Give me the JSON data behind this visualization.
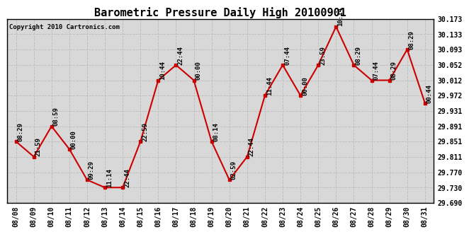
{
  "title": "Barometric Pressure Daily High 20100901",
  "copyright": "Copyright 2010 Cartronics.com",
  "dates": [
    "08/08",
    "08/09",
    "08/10",
    "08/11",
    "08/12",
    "08/13",
    "08/14",
    "08/15",
    "08/16",
    "08/17",
    "08/18",
    "08/19",
    "08/20",
    "08/21",
    "08/22",
    "08/23",
    "08/24",
    "08/25",
    "08/26",
    "08/27",
    "08/28",
    "08/29",
    "08/30",
    "08/31"
  ],
  "values": [
    29.851,
    29.811,
    29.891,
    29.831,
    29.75,
    29.73,
    29.73,
    29.851,
    30.012,
    30.052,
    30.012,
    29.851,
    29.75,
    29.811,
    29.972,
    30.052,
    29.972,
    30.052,
    30.153,
    30.052,
    30.012,
    30.012,
    30.093,
    29.952
  ],
  "labels": [
    "08:29",
    "21:59",
    "08:59",
    "00:00",
    "09:29",
    "11:14",
    "22:44",
    "22:59",
    "10:44",
    "22:44",
    "00:00",
    "08:14",
    "02:59",
    "22:44",
    "11:44",
    "07:44",
    "00:00",
    "23:59",
    "10:14",
    "08:29",
    "07:44",
    "08:29",
    "08:29",
    "00:44"
  ],
  "ylim": [
    29.69,
    30.173
  ],
  "yticks": [
    29.69,
    29.73,
    29.77,
    29.811,
    29.851,
    29.891,
    29.931,
    29.972,
    30.012,
    30.052,
    30.093,
    30.133,
    30.173
  ],
  "line_color": "#cc0000",
  "marker_color": "#cc0000",
  "plot_bg_color": "#d8d8d8",
  "grid_color": "#bbbbbb",
  "title_fontsize": 11,
  "label_fontsize": 6.5,
  "tick_fontsize": 7,
  "copyright_fontsize": 6.5
}
